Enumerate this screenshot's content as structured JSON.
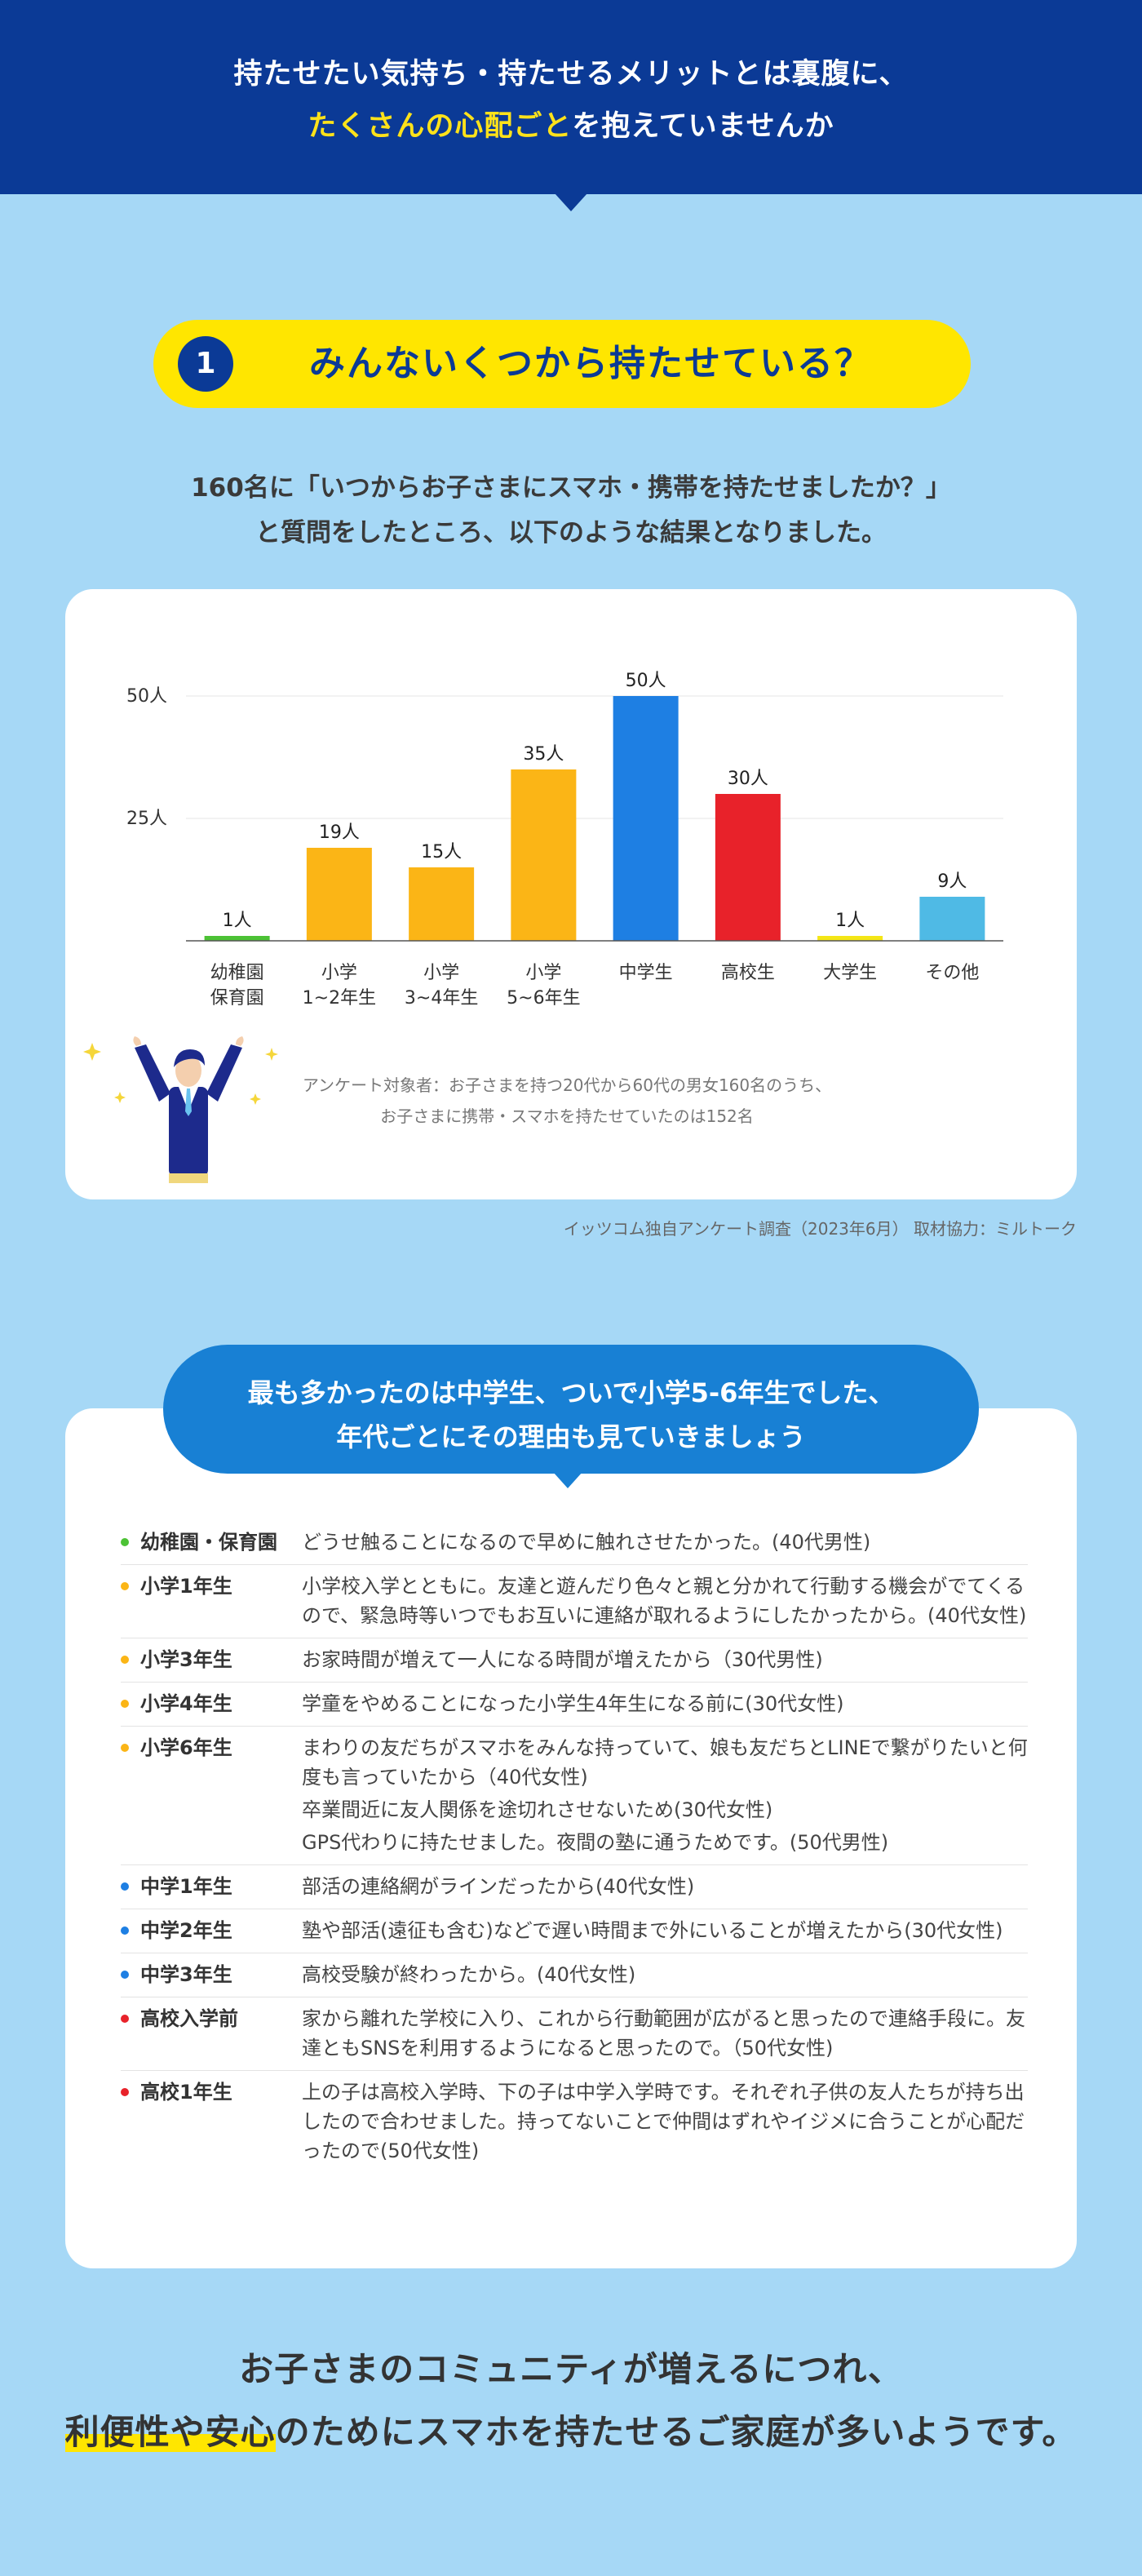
{
  "header": {
    "line1": "持たせたい気持ち・持たせるメリットとは裏腹に、",
    "line2_highlight": "たくさんの心配ごと",
    "line2_rest": "を抱えていませんか"
  },
  "section1": {
    "number": "1",
    "title": "みんないくつから持たせている？",
    "intro_line1": "160名に「いつからお子さまにスマホ・携帯を持たせましたか？」",
    "intro_line2": "と質問をしたところ、以下のような結果となりました。",
    "survey_line1": "アンケート対象者：お子さまを持つ20代から60代の男女160名のうち、",
    "survey_line2": "お子さまに携帯・スマホを持たせていたのは152名",
    "source": "イッツコム独自アンケート調査（2023年6月） 取材協力：ミルトーク"
  },
  "chart_data": {
    "type": "bar",
    "categories": [
      [
        "幼稚園",
        "保育園"
      ],
      [
        "小学",
        "1~2年生"
      ],
      [
        "小学",
        "3~4年生"
      ],
      [
        "小学",
        "5~6年生"
      ],
      [
        "中学生"
      ],
      [
        "高校生"
      ],
      [
        "大学生"
      ],
      [
        "その他"
      ]
    ],
    "values": [
      1,
      19,
      15,
      35,
      50,
      30,
      1,
      9
    ],
    "value_labels": [
      "1人",
      "19人",
      "15人",
      "35人",
      "50人",
      "30人",
      "1人",
      "9人"
    ],
    "colors": [
      "#4cc235",
      "#fbb516",
      "#fbb516",
      "#fbb516",
      "#1e7fe3",
      "#e8222a",
      "#f4e616",
      "#4fbae5"
    ],
    "ylim": [
      0,
      50
    ],
    "yticks": [
      {
        "value": 25,
        "label": "25人"
      },
      {
        "value": 50,
        "label": "50人"
      }
    ],
    "grid": true
  },
  "section2": {
    "bubble_line1": "最も多かったのは中学生、ついで小学5-6年生でした、",
    "bubble_line2": "年代ごとにその理由も見ていきましょう",
    "rows": [
      {
        "label": "幼稚園・保育園",
        "color": "#4cc235",
        "answers": [
          "どうせ触ることになるので早めに触れさせたかった。(40代男性)"
        ]
      },
      {
        "label": "小学1年生",
        "color": "#fbb516",
        "answers": [
          "小学校入学とともに。友達と遊んだり色々と親と分かれて行動する機会がでてくるので、緊急時等いつでもお互いに連絡が取れるようにしたかったから。(40代女性)"
        ]
      },
      {
        "label": "小学3年生",
        "color": "#fbb516",
        "answers": [
          "お家時間が増えて一人になる時間が増えたから（30代男性)"
        ]
      },
      {
        "label": "小学4年生",
        "color": "#fbb516",
        "answers": [
          "学童をやめることになった小学生4年生になる前に(30代女性)"
        ]
      },
      {
        "label": "小学6年生",
        "color": "#fbb516",
        "answers": [
          "まわりの友だちがスマホをみんな持っていて、娘も友だちとLINEで繋がりたいと何度も言っていたから（40代女性)",
          "卒業間近に友人関係を途切れさせないため(30代女性)",
          "GPS代わりに持たせました。夜間の塾に通うためです。(50代男性)"
        ]
      },
      {
        "label": "中学1年生",
        "color": "#1e7fe3",
        "answers": [
          "部活の連絡網がラインだったから(40代女性)"
        ]
      },
      {
        "label": "中学2年生",
        "color": "#1e7fe3",
        "answers": [
          "塾や部活(遠征も含む)などで遅い時間まで外にいることが増えたから(30代女性)"
        ]
      },
      {
        "label": "中学3年生",
        "color": "#1e7fe3",
        "answers": [
          "高校受験が終わったから。(40代女性)"
        ]
      },
      {
        "label": "高校入学前",
        "color": "#e8222a",
        "answers": [
          "家から離れた学校に入り、これから行動範囲が広がると思ったので連絡手段に。友達ともSNSを利用するようになると思ったので。（50代女性)"
        ]
      },
      {
        "label": "高校1年生",
        "color": "#e8222a",
        "answers": [
          "上の子は高校入学時、下の子は中学入学時です。それぞれ子供の友人たちが持ち出したので合わせました。持ってないことで仲間はずれやイジメに合うことが心配だったので(50代女性)"
        ]
      }
    ]
  },
  "closing": {
    "line1": "お子さまのコミュニティが増えるにつれ、",
    "line2_highlight": "利便性や安心",
    "line2_rest": "のためにスマホを持たせるご家庭が多いようです。"
  }
}
